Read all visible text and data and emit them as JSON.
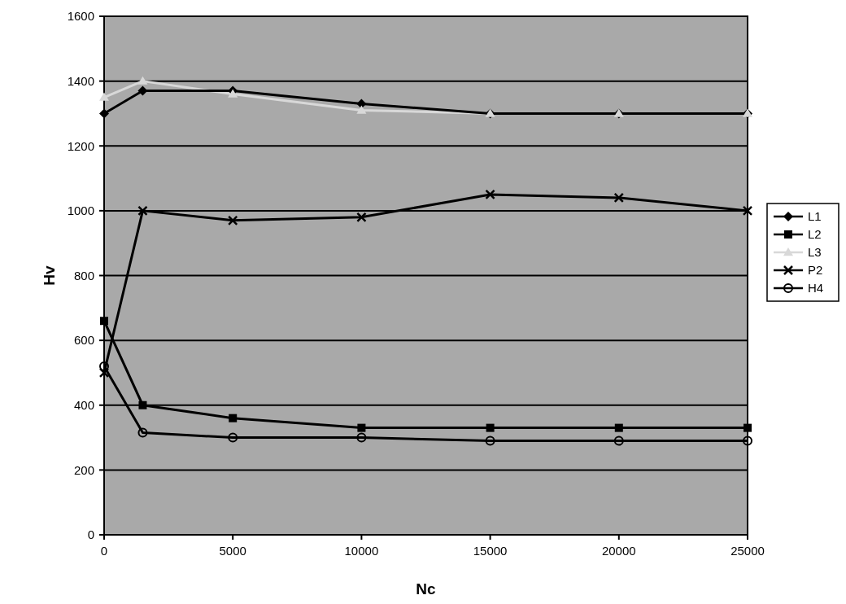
{
  "chart_data": {
    "type": "line",
    "xlabel": "Nc",
    "ylabel": "Hv",
    "x": [
      0,
      1500,
      5000,
      10000,
      15000,
      20000,
      25000
    ],
    "xlim": [
      0,
      25000
    ],
    "xticks": [
      0,
      5000,
      10000,
      15000,
      20000,
      25000
    ],
    "ylim": [
      0,
      1600
    ],
    "yticks": [
      0,
      200,
      400,
      600,
      800,
      1000,
      1200,
      1400,
      1600
    ],
    "grid": "y",
    "legend": "right",
    "series": [
      {
        "name": "L1",
        "color": "#000000",
        "marker": "diamond",
        "values": [
          1300,
          1370,
          1370,
          1330,
          1300,
          1300,
          1300
        ]
      },
      {
        "name": "L2",
        "color": "#000000",
        "marker": "square",
        "values": [
          660,
          400,
          360,
          330,
          330,
          330,
          330
        ]
      },
      {
        "name": "L3",
        "color": "#d8d8d8",
        "marker": "triangle",
        "values": [
          1350,
          1400,
          1360,
          1310,
          1300,
          1300,
          1300
        ]
      },
      {
        "name": "P2",
        "color": "#000000",
        "marker": "cross",
        "values": [
          500,
          1000,
          970,
          980,
          1050,
          1040,
          1000
        ]
      },
      {
        "name": "H4",
        "color": "#000000",
        "marker": "circle",
        "values": [
          520,
          315,
          300,
          300,
          290,
          290,
          290
        ]
      }
    ]
  }
}
